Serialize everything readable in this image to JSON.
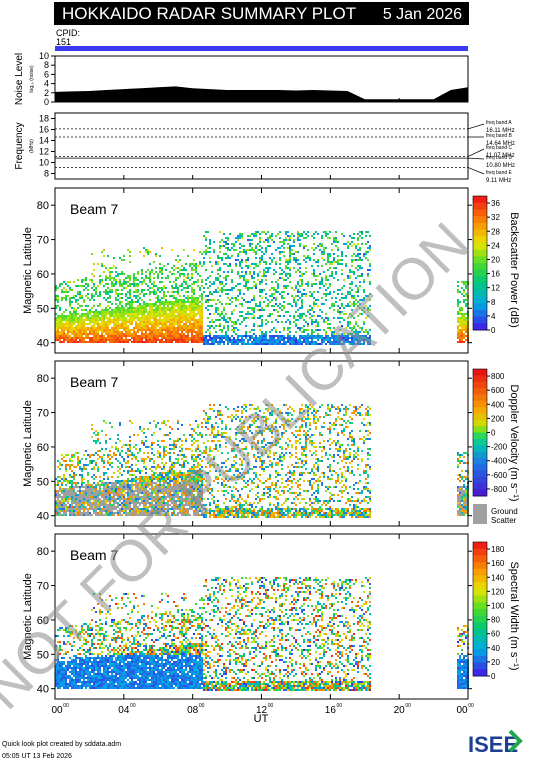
{
  "header": {
    "title": "HOKKAIDO RADAR SUMMARY PLOT",
    "date": "5 Jan 2026",
    "cpid_label": "CPID:",
    "cpid_value": "151"
  },
  "footer": {
    "line1": "Quick look plot created by sddata.adm",
    "line2": "05:05 UT 13 Feb 2026",
    "logo": "ISEE"
  },
  "watermark": "NOT FOR PUBLICATION",
  "colors": {
    "cpid_bar": "#3a3af5",
    "ground_scatter": "#a0a0a0"
  },
  "chart_data": [
    {
      "type": "area",
      "name": "noise",
      "ylabel": "Noise Level",
      "ylabel_sub": "log₁₀ (noise)",
      "ylim": [
        0,
        10
      ],
      "yticks": [
        "0",
        "2",
        "4",
        "6",
        "8",
        "10"
      ],
      "note": "",
      "x": [
        0,
        1,
        2,
        3,
        4,
        5,
        6,
        7,
        8,
        9,
        10,
        11,
        12,
        13,
        14,
        15,
        16,
        17,
        18,
        19,
        20,
        21,
        22,
        23,
        24
      ],
      "values": [
        2.2,
        2.3,
        2.4,
        2.6,
        2.8,
        3.0,
        3.2,
        3.4,
        3.0,
        2.8,
        2.6,
        2.6,
        2.6,
        2.6,
        2.5,
        2.6,
        2.5,
        2.4,
        0.6,
        0.6,
        0.6,
        0.6,
        0.6,
        2.6,
        3.2
      ]
    },
    {
      "type": "line",
      "name": "frequency",
      "ylabel": "Frequency",
      "ylabel_sub": "(MHz)",
      "ylim": [
        7,
        19
      ],
      "yticks": [
        "8",
        "10",
        "12",
        "14",
        "16",
        "18"
      ],
      "bands": [
        {
          "label": "freq band A",
          "value": "16.11 MHz",
          "freq": 16.11
        },
        {
          "label": "freq band B",
          "value": "14.64 MHz",
          "freq": 14.64
        },
        {
          "label": "freq band C",
          "value": "11.07 MHz",
          "freq": 11.07
        },
        {
          "label": "freq band D",
          "value": "10.80 MHz",
          "freq": 10.8
        },
        {
          "label": "freq band E",
          "value": "9.11 MHz",
          "freq": 9.11
        }
      ]
    },
    {
      "type": "heatmap",
      "name": "power",
      "beam": "Beam  7",
      "ylabel": "Magnetic Latitude",
      "ylim": [
        37,
        85
      ],
      "yticks": [
        "40",
        "50",
        "60",
        "70",
        "80"
      ],
      "colorbar": {
        "label": "Backscatter Power (dB)",
        "ticks": [
          "0",
          "4",
          "8",
          "12",
          "16",
          "20",
          "24",
          "28",
          "32",
          "36"
        ],
        "range": [
          0,
          38
        ]
      }
    },
    {
      "type": "heatmap",
      "name": "velocity",
      "beam": "Beam  7",
      "ylabel": "Magnetic Latitude",
      "ylim": [
        37,
        85
      ],
      "yticks": [
        "40",
        "50",
        "60",
        "70",
        "80"
      ],
      "colorbar": {
        "label": "Doppler Velocity (m s⁻¹)",
        "ticks": [
          "800",
          "600",
          "400",
          "200",
          "0",
          "-200",
          "-400",
          "-600",
          "-800"
        ],
        "range": [
          -900,
          900
        ],
        "ground_label": "Ground",
        "ground_label2": "Scatter"
      }
    },
    {
      "type": "heatmap",
      "name": "width",
      "beam": "Beam  7",
      "ylabel": "Magnetic Latitude",
      "ylim": [
        37,
        85
      ],
      "yticks": [
        "40",
        "50",
        "60",
        "70",
        "80"
      ],
      "colorbar": {
        "label": "Spectral Width (m s⁻¹)",
        "ticks": [
          "0",
          "20",
          "40",
          "60",
          "80",
          "100",
          "120",
          "140",
          "160",
          "180"
        ],
        "range": [
          0,
          190
        ]
      }
    }
  ],
  "xaxis": {
    "label": "UT",
    "ticks": [
      "00",
      "04",
      "08",
      "12",
      "16",
      "20",
      "00"
    ],
    "tick_hours": [
      0,
      4,
      8,
      12,
      16,
      20,
      24
    ],
    "xlim": [
      0,
      24
    ]
  }
}
